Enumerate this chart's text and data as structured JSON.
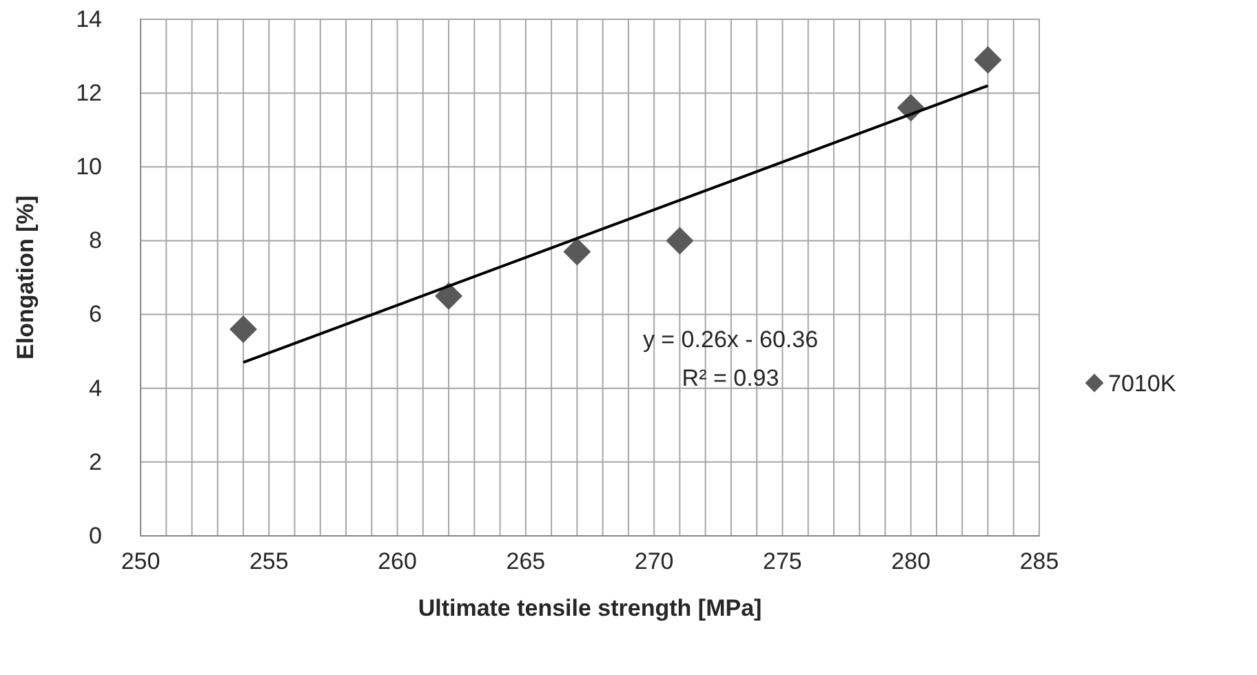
{
  "chart_data": {
    "type": "scatter",
    "xlabel": "Ultimate tensile strength [MPa]",
    "ylabel": "Elongation [%]",
    "x": [
      254,
      262,
      267,
      271,
      280,
      283
    ],
    "series": [
      {
        "name": "7010K",
        "color": "#595959",
        "marker": "diamond",
        "values": [
          5.6,
          6.5,
          7.7,
          8.0,
          11.6,
          12.9
        ]
      },
      {
        "type": "line",
        "x": [
          254,
          283
        ],
        "color": "#000000",
        "line_style": "solid",
        "values": [
          4.7,
          12.2
        ]
      }
    ],
    "xlim": [
      250,
      285
    ],
    "xticks": [
      250,
      {
        "value": 251,
        "label": null
      },
      {
        "value": 252,
        "label": null
      },
      {
        "value": 253,
        "label": null
      },
      {
        "value": 254,
        "label": null
      },
      255,
      {
        "value": 256,
        "label": null
      },
      {
        "value": 257,
        "label": null
      },
      {
        "value": 258,
        "label": null
      },
      {
        "value": 259,
        "label": null
      },
      260,
      {
        "value": 261,
        "label": null
      },
      {
        "value": 262,
        "label": null
      },
      {
        "value": 263,
        "label": null
      },
      {
        "value": 264,
        "label": null
      },
      265,
      {
        "value": 266,
        "label": null
      },
      {
        "value": 267,
        "label": null
      },
      {
        "value": 268,
        "label": null
      },
      {
        "value": 269,
        "label": null
      },
      270,
      {
        "value": 271,
        "label": null
      },
      {
        "value": 272,
        "label": null
      },
      {
        "value": 273,
        "label": null
      },
      {
        "value": 274,
        "label": null
      },
      275,
      {
        "value": 276,
        "label": null
      },
      {
        "value": 277,
        "label": null
      },
      {
        "value": 278,
        "label": null
      },
      {
        "value": 279,
        "label": null
      },
      280,
      {
        "value": 281,
        "label": null
      },
      {
        "value": 282,
        "label": null
      },
      {
        "value": 283,
        "label": null
      },
      {
        "value": 284,
        "label": null
      },
      285
    ],
    "ylim": [
      0,
      14
    ],
    "yticks": [
      0,
      2,
      4,
      6,
      8,
      10,
      12,
      14
    ],
    "grid": true,
    "legend": "right",
    "annotations": [
      "y = 0.26x - 60.36",
      "R² = 0.93"
    ]
  }
}
